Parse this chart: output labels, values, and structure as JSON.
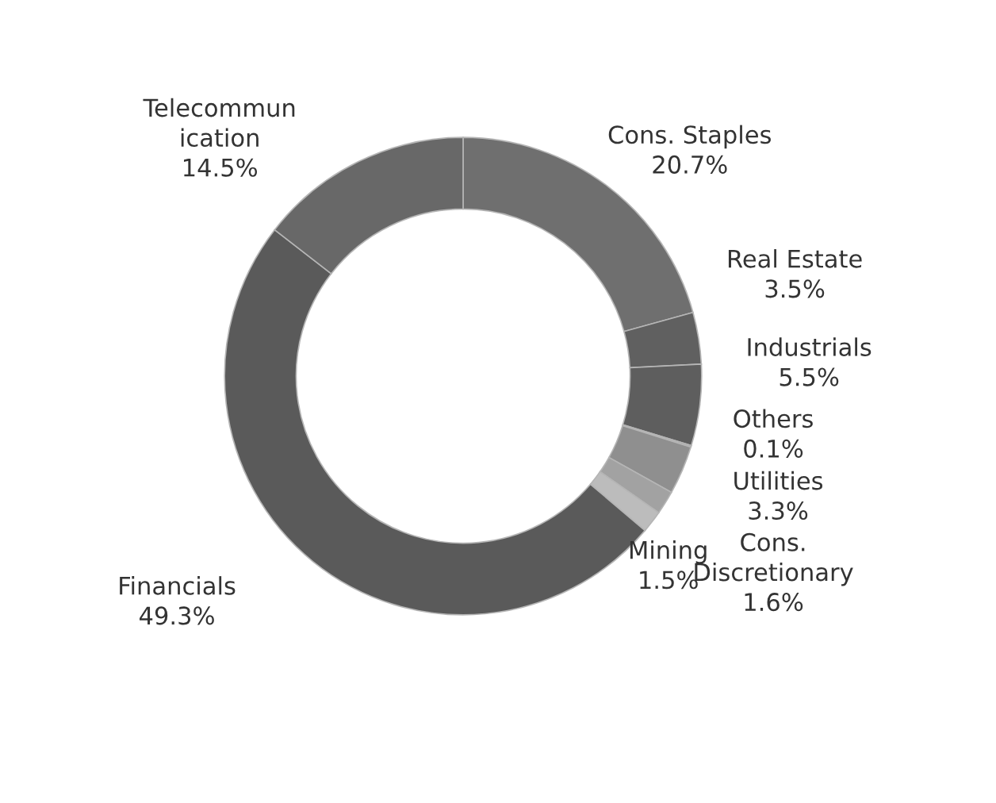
{
  "chart_data": {
    "type": "donut",
    "categories": [
      "Cons. Staples",
      "Real Estate",
      "Industrials",
      "Others",
      "Utilities",
      "Cons.\nDiscretionary",
      "Mining",
      "Financials",
      "Telecommun\nication"
    ],
    "values": [
      20.7,
      3.5,
      5.5,
      0.1,
      3.3,
      1.6,
      1.5,
      49.3,
      14.5
    ],
    "value_labels": [
      "20.7%",
      "3.5%",
      "5.5%",
      "0.1%",
      "3.3%",
      "1.6%",
      "1.5%",
      "49.3%",
      "14.5%"
    ],
    "colors": [
      "#6f6f6f",
      "#606060",
      "#5e5e5e",
      "#8c8c8c",
      "#8f8f8f",
      "#a2a2a2",
      "#bcbcbc",
      "#5a5a5a",
      "#686868"
    ],
    "legend": false
  }
}
